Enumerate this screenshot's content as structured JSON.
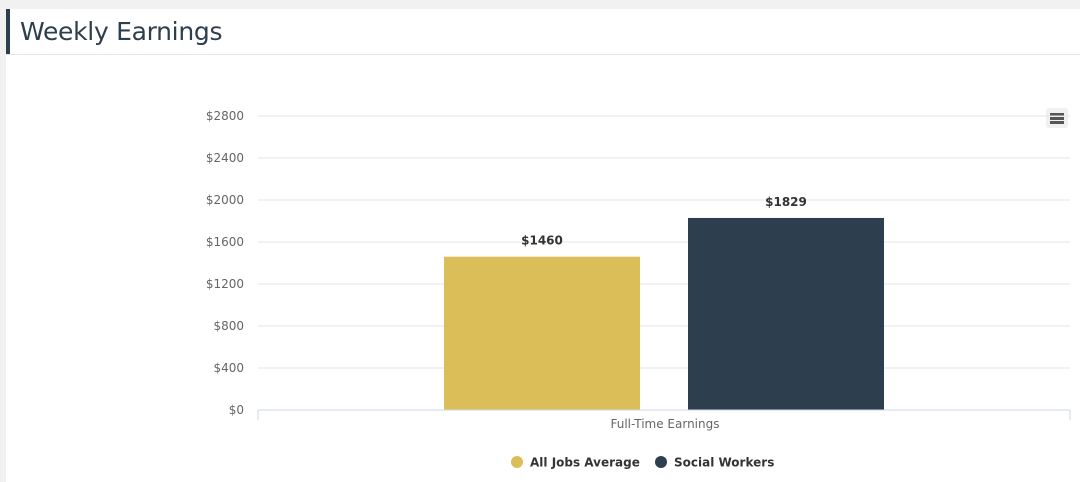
{
  "header": {
    "title": "Weekly Earnings"
  },
  "toolbar": {
    "menu_icon": "hamburger-menu-icon"
  },
  "colors": {
    "title": "#2d3e4e",
    "accent": "#2d3e4e",
    "all_jobs": "#dbbe58",
    "social_workers": "#2d3e4e",
    "grid": "#e6e6e6"
  },
  "chart_data": {
    "type": "bar",
    "title": "",
    "categories": [
      "Full-Time Earnings"
    ],
    "series": [
      {
        "name": "All Jobs Average",
        "values": [
          1460
        ],
        "label": "$1460",
        "color": "#dbbe58"
      },
      {
        "name": "Social Workers",
        "values": [
          1829
        ],
        "label": "$1829",
        "color": "#2d3e4e"
      }
    ],
    "xlabel": "",
    "ylabel": "",
    "ylim": [
      0,
      2800
    ],
    "yticks": [
      0,
      400,
      800,
      1200,
      1600,
      2000,
      2400,
      2800
    ],
    "ytick_labels": [
      "$0",
      "$400",
      "$800",
      "$1200",
      "$1600",
      "$2000",
      "$2400",
      "$2800"
    ],
    "grid": true,
    "legend_position": "bottom-center"
  }
}
